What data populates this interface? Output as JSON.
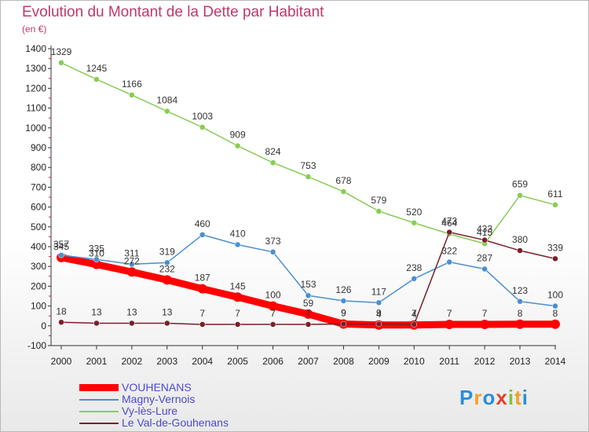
{
  "header": {
    "title": "Evolution du Montant de la Dette par Habitant",
    "subtitle": "(en €)"
  },
  "logo": {
    "text": "Proxiti",
    "letters": [
      "P",
      "r",
      "o",
      "x",
      "i",
      "t",
      "i"
    ],
    "colors": [
      "#2a8fd8",
      "#f2a12a",
      "#2a8fd8",
      "#e2402a",
      "#7fc241",
      "#f2a12a",
      "#2a8fd8"
    ]
  },
  "chart_data": {
    "type": "line",
    "x": [
      "2000",
      "2001",
      "2002",
      "2003",
      "2004",
      "2005",
      "2006",
      "2007",
      "2008",
      "2009",
      "2010",
      "2011",
      "2012",
      "2013",
      "2014"
    ],
    "ylim": [
      -100,
      1400
    ],
    "yticks": [
      "-100",
      "0",
      "100",
      "200",
      "300",
      "400",
      "500",
      "600",
      "700",
      "800",
      "900",
      "1000",
      "1100",
      "1200",
      "1300",
      "1400"
    ],
    "grid": false,
    "legend_position": "bottom-left",
    "series": [
      {
        "name": "VOUHENANS",
        "color": "#ff0000",
        "values": [
          345,
          310,
          272,
          232,
          187,
          145,
          100,
          59,
          9,
          4,
          4,
          7,
          7,
          8,
          8
        ],
        "labels": [
          "345",
          "310",
          "272",
          "232",
          "187",
          "145",
          "100",
          "59",
          "9",
          "4",
          "4",
          "7",
          "7",
          "8",
          "8"
        ],
        "bold": true
      },
      {
        "name": "Magny-Vernois",
        "color": "#4a8fd0",
        "values": [
          357,
          335,
          311,
          319,
          460,
          410,
          373,
          153,
          126,
          117,
          238,
          322,
          287,
          123,
          100
        ],
        "labels": [
          "357",
          "335",
          "311",
          "319",
          "460",
          "410",
          "373",
          "153",
          "126",
          "117",
          "238",
          "322",
          "287",
          "123",
          "100"
        ],
        "bold": false
      },
      {
        "name": "Vy-lès-Lure",
        "color": "#88cc55",
        "values": [
          1329,
          1245,
          1166,
          1084,
          1003,
          909,
          824,
          753,
          678,
          579,
          520,
          464,
          415,
          659,
          611
        ],
        "labels": [
          "1329",
          "1245",
          "1166",
          "1084",
          "1003",
          "909",
          "824",
          "753",
          "678",
          "579",
          "520",
          "464",
          "415",
          "659",
          "611"
        ],
        "bold": false
      },
      {
        "name": "Le Val-de-Gouhenans",
        "color": "#7a1f2a",
        "values": [
          18,
          13,
          13,
          13,
          7,
          7,
          7,
          7,
          9,
          9,
          7,
          473,
          433,
          380,
          339
        ],
        "labels": [
          "18",
          "13",
          "13",
          "13",
          "7",
          "7",
          "7",
          "7",
          "9",
          "9",
          "7",
          "473",
          "433",
          "380",
          "339"
        ],
        "bold": false
      }
    ]
  }
}
